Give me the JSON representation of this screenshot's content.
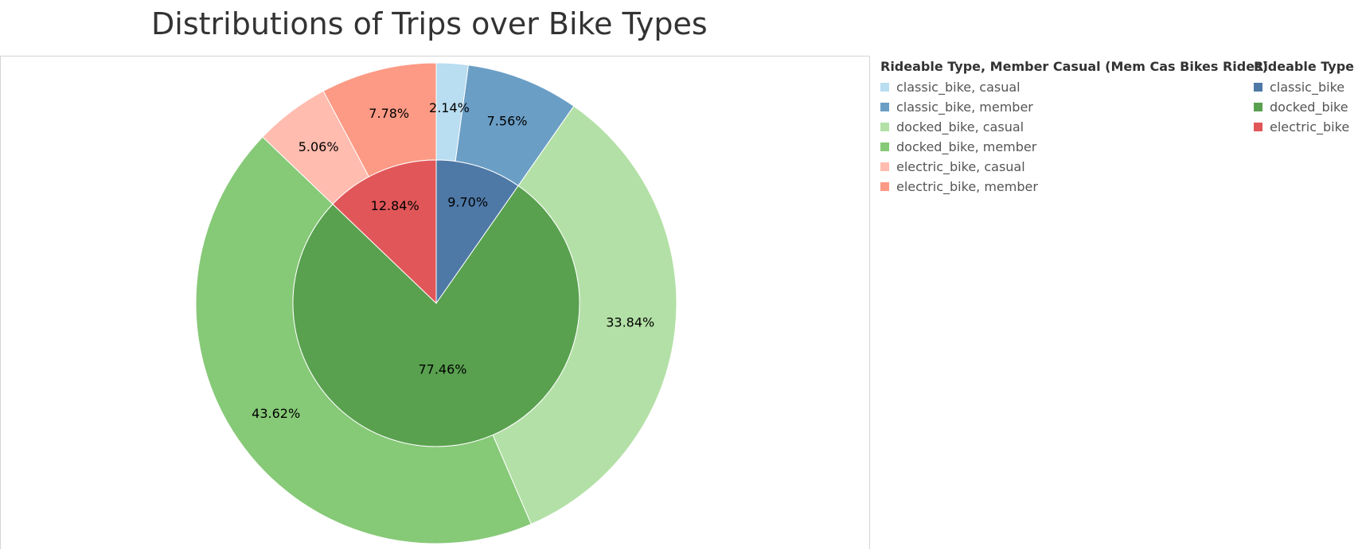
{
  "title": "Distributions of Trips over Bike Types",
  "chart_data": {
    "type": "pie",
    "title": "Distributions of Trips over Bike Types",
    "inner": {
      "legend_title": "Rideable Type",
      "slices": [
        {
          "name": "classic_bike",
          "value": 9.7,
          "label": "9.70%",
          "color": "#4e79a7"
        },
        {
          "name": "docked_bike",
          "value": 77.46,
          "label": "77.46%",
          "color": "#59a14f"
        },
        {
          "name": "electric_bike",
          "value": 12.84,
          "label": "12.84%",
          "color": "#e15759"
        }
      ]
    },
    "outer": {
      "legend_title": "Rideable Type, Member Casual (Mem Cas Bikes Rides)",
      "slices": [
        {
          "name": "classic_bike, casual",
          "value": 2.14,
          "label": "2.14%",
          "color": "#b9ddf1"
        },
        {
          "name": "classic_bike, member",
          "value": 7.56,
          "label": "7.56%",
          "color": "#6a9ec5"
        },
        {
          "name": "docked_bike, casual",
          "value": 33.84,
          "label": "33.84%",
          "color": "#b3e0a6"
        },
        {
          "name": "docked_bike, member",
          "value": 43.62,
          "label": "43.62%",
          "color": "#86c977"
        },
        {
          "name": "electric_bike, casual",
          "value": 5.06,
          "label": "5.06%",
          "color": "#ffbcaf"
        },
        {
          "name": "electric_bike, member",
          "value": 7.78,
          "label": "7.78%",
          "color": "#fc9a85"
        }
      ]
    }
  }
}
